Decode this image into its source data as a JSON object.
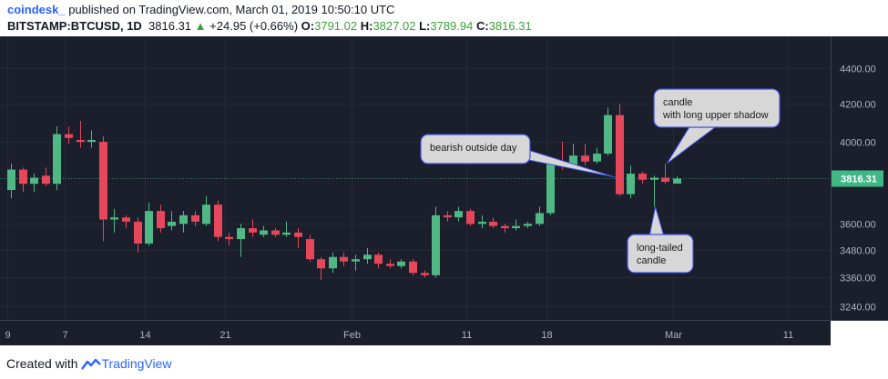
{
  "header": {
    "author": "coindesk_",
    "published": "published on TradingView.com, March 01, 2019 10:50:10 UTC",
    "symbol": "BITSTAMP:BTCUSD, 1D",
    "last": "3816.31",
    "change_arrow": "▲",
    "change": "+24.95 (+0.66%)",
    "o_label": "O:",
    "o_value": "3791.02",
    "h_label": "H:",
    "h_value": "3827.02",
    "l_label": "L:",
    "l_value": "3789.94",
    "c_label": "C:",
    "c_value": "3816.31"
  },
  "footer": {
    "prefix": "Created with",
    "brand": "TradingView"
  },
  "colors": {
    "up": "#4fb884",
    "down": "#e6475a",
    "background": "#1b1e2b",
    "annotation": "#d7d7d7",
    "annotation_border": "#3f51e6",
    "price_tag": "#3fb886"
  },
  "chart_data": {
    "type": "candlestick",
    "symbol": "BITSTAMP:BTCUSD",
    "interval": "1D",
    "y_scale": "log",
    "ylim": [
      3160,
      4620
    ],
    "y_ticks": [
      "3240.00",
      "3360.00",
      "3480.00",
      "3600.00",
      "4000.00",
      "4200.00",
      "4400.00"
    ],
    "x_tick_labels": [
      {
        "label": "9",
        "date": "2019-01-02"
      },
      {
        "label": "7",
        "date": "2019-01-07"
      },
      {
        "label": "14",
        "date": "2019-01-14"
      },
      {
        "label": "21",
        "date": "2019-01-21"
      },
      {
        "label": "Feb",
        "date": "2019-02-01"
      },
      {
        "label": "11",
        "date": "2019-02-11"
      },
      {
        "label": "18",
        "date": "2019-02-18"
      },
      {
        "label": "Mar",
        "date": "2019-03-01"
      },
      {
        "label": "11",
        "date": "2019-03-11"
      }
    ],
    "last_price": "3816.31",
    "candles": [
      {
        "date": "2019-01-02",
        "o": 3760,
        "h": 3890,
        "l": 3720,
        "c": 3860
      },
      {
        "date": "2019-01-03",
        "o": 3860,
        "h": 3870,
        "l": 3750,
        "c": 3790
      },
      {
        "date": "2019-01-04",
        "o": 3790,
        "h": 3840,
        "l": 3750,
        "c": 3820
      },
      {
        "date": "2019-01-05",
        "o": 3830,
        "h": 3870,
        "l": 3780,
        "c": 3790
      },
      {
        "date": "2019-01-06",
        "o": 3790,
        "h": 4080,
        "l": 3760,
        "c": 4040
      },
      {
        "date": "2019-01-07",
        "o": 4040,
        "h": 4080,
        "l": 3990,
        "c": 4020
      },
      {
        "date": "2019-01-08",
        "o": 4010,
        "h": 4110,
        "l": 3970,
        "c": 4000
      },
      {
        "date": "2019-01-09",
        "o": 4000,
        "h": 4060,
        "l": 3970,
        "c": 4010
      },
      {
        "date": "2019-01-10",
        "o": 4000,
        "h": 4030,
        "l": 3520,
        "c": 3620
      },
      {
        "date": "2019-01-11",
        "o": 3620,
        "h": 3670,
        "l": 3560,
        "c": 3630
      },
      {
        "date": "2019-01-12",
        "o": 3630,
        "h": 3640,
        "l": 3580,
        "c": 3610
      },
      {
        "date": "2019-01-13",
        "o": 3610,
        "h": 3630,
        "l": 3470,
        "c": 3510
      },
      {
        "date": "2019-01-14",
        "o": 3510,
        "h": 3700,
        "l": 3500,
        "c": 3660
      },
      {
        "date": "2019-01-15",
        "o": 3660,
        "h": 3690,
        "l": 3560,
        "c": 3580
      },
      {
        "date": "2019-01-16",
        "o": 3590,
        "h": 3660,
        "l": 3570,
        "c": 3610
      },
      {
        "date": "2019-01-17",
        "o": 3600,
        "h": 3660,
        "l": 3560,
        "c": 3640
      },
      {
        "date": "2019-01-18",
        "o": 3640,
        "h": 3660,
        "l": 3590,
        "c": 3610
      },
      {
        "date": "2019-01-19",
        "o": 3600,
        "h": 3730,
        "l": 3590,
        "c": 3690
      },
      {
        "date": "2019-01-20",
        "o": 3690,
        "h": 3710,
        "l": 3520,
        "c": 3540
      },
      {
        "date": "2019-01-21",
        "o": 3540,
        "h": 3560,
        "l": 3500,
        "c": 3530
      },
      {
        "date": "2019-01-22",
        "o": 3530,
        "h": 3600,
        "l": 3450,
        "c": 3580
      },
      {
        "date": "2019-01-23",
        "o": 3580,
        "h": 3620,
        "l": 3540,
        "c": 3560
      },
      {
        "date": "2019-01-24",
        "o": 3550,
        "h": 3590,
        "l": 3540,
        "c": 3570
      },
      {
        "date": "2019-01-25",
        "o": 3570,
        "h": 3580,
        "l": 3540,
        "c": 3550
      },
      {
        "date": "2019-01-26",
        "o": 3550,
        "h": 3610,
        "l": 3540,
        "c": 3560
      },
      {
        "date": "2019-01-27",
        "o": 3560,
        "h": 3580,
        "l": 3490,
        "c": 3540
      },
      {
        "date": "2019-01-28",
        "o": 3530,
        "h": 3550,
        "l": 3430,
        "c": 3440
      },
      {
        "date": "2019-01-29",
        "o": 3440,
        "h": 3450,
        "l": 3350,
        "c": 3400
      },
      {
        "date": "2019-01-30",
        "o": 3400,
        "h": 3470,
        "l": 3380,
        "c": 3450
      },
      {
        "date": "2019-01-31",
        "o": 3450,
        "h": 3470,
        "l": 3410,
        "c": 3430
      },
      {
        "date": "2019-02-01",
        "o": 3430,
        "h": 3460,
        "l": 3390,
        "c": 3440
      },
      {
        "date": "2019-02-02",
        "o": 3440,
        "h": 3490,
        "l": 3420,
        "c": 3460
      },
      {
        "date": "2019-02-03",
        "o": 3460,
        "h": 3470,
        "l": 3400,
        "c": 3420
      },
      {
        "date": "2019-02-04",
        "o": 3420,
        "h": 3440,
        "l": 3400,
        "c": 3410
      },
      {
        "date": "2019-02-05",
        "o": 3410,
        "h": 3440,
        "l": 3400,
        "c": 3430
      },
      {
        "date": "2019-02-06",
        "o": 3430,
        "h": 3440,
        "l": 3370,
        "c": 3380
      },
      {
        "date": "2019-02-07",
        "o": 3380,
        "h": 3390,
        "l": 3360,
        "c": 3370
      },
      {
        "date": "2019-02-08",
        "o": 3370,
        "h": 3680,
        "l": 3360,
        "c": 3640
      },
      {
        "date": "2019-02-09",
        "o": 3640,
        "h": 3660,
        "l": 3610,
        "c": 3630
      },
      {
        "date": "2019-02-10",
        "o": 3630,
        "h": 3680,
        "l": 3610,
        "c": 3660
      },
      {
        "date": "2019-02-11",
        "o": 3660,
        "h": 3670,
        "l": 3590,
        "c": 3600
      },
      {
        "date": "2019-02-12",
        "o": 3600,
        "h": 3640,
        "l": 3580,
        "c": 3610
      },
      {
        "date": "2019-02-13",
        "o": 3610,
        "h": 3630,
        "l": 3580,
        "c": 3590
      },
      {
        "date": "2019-02-14",
        "o": 3590,
        "h": 3600,
        "l": 3560,
        "c": 3580
      },
      {
        "date": "2019-02-15",
        "o": 3580,
        "h": 3620,
        "l": 3570,
        "c": 3590
      },
      {
        "date": "2019-02-16",
        "o": 3590,
        "h": 3610,
        "l": 3580,
        "c": 3600
      },
      {
        "date": "2019-02-17",
        "o": 3600,
        "h": 3680,
        "l": 3590,
        "c": 3650
      },
      {
        "date": "2019-02-18",
        "o": 3650,
        "h": 3900,
        "l": 3640,
        "c": 3890
      },
      {
        "date": "2019-02-19",
        "o": 3890,
        "h": 4000,
        "l": 3860,
        "c": 3880
      },
      {
        "date": "2019-02-20",
        "o": 3880,
        "h": 3990,
        "l": 3870,
        "c": 3930
      },
      {
        "date": "2019-02-21",
        "o": 3930,
        "h": 3990,
        "l": 3880,
        "c": 3900
      },
      {
        "date": "2019-02-22",
        "o": 3900,
        "h": 3970,
        "l": 3890,
        "c": 3940
      },
      {
        "date": "2019-02-23",
        "o": 3940,
        "h": 4180,
        "l": 3930,
        "c": 4140
      },
      {
        "date": "2019-02-24",
        "o": 4140,
        "h": 4200,
        "l": 3730,
        "c": 3740
      },
      {
        "date": "2019-02-25",
        "o": 3740,
        "h": 3880,
        "l": 3720,
        "c": 3840
      },
      {
        "date": "2019-02-26",
        "o": 3840,
        "h": 3850,
        "l": 3790,
        "c": 3810
      },
      {
        "date": "2019-02-27",
        "o": 3810,
        "h": 3830,
        "l": 3680,
        "c": 3820
      },
      {
        "date": "2019-02-28",
        "o": 3820,
        "h": 3890,
        "l": 3790,
        "c": 3800
      },
      {
        "date": "2019-03-01",
        "o": 3791.02,
        "h": 3827.02,
        "l": 3789.94,
        "c": 3816.31
      }
    ],
    "annotations": [
      {
        "text": [
          "bearish outside day"
        ],
        "target_date": "2019-02-24",
        "target_price": 3840
      },
      {
        "text": [
          "candle",
          "with long upper shadow"
        ],
        "target_date": "2019-02-28",
        "target_price": 3890
      },
      {
        "text": [
          "long-tailed",
          "candle"
        ],
        "target_date": "2019-02-27",
        "target_price": 3680
      }
    ]
  }
}
